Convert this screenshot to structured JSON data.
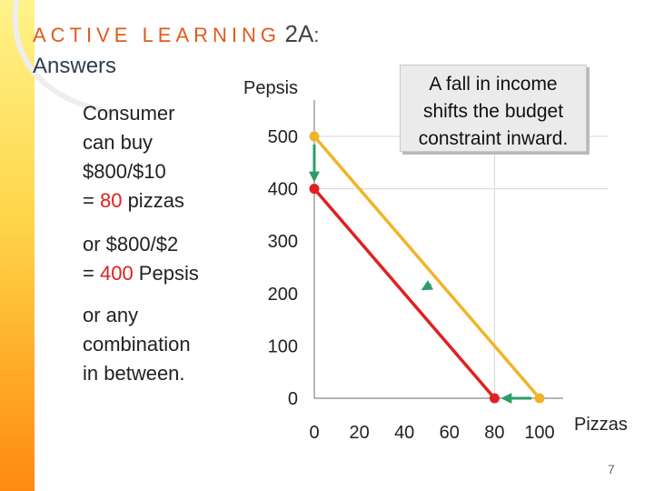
{
  "header": {
    "title_spaced": "ACTIVE LEARNING",
    "title_number": "2A",
    "title_colon": ":",
    "subtitle": "Answers"
  },
  "text": {
    "block1_line1": "Consumer",
    "block1_line2": "can buy",
    "block1_line3": "$800/$10",
    "block1_line4_prefix": "= ",
    "block1_line4_value": "80",
    "block1_line4_suffix": " pizzas",
    "block2_line1": "or $800/$2",
    "block2_line2_prefix": "= ",
    "block2_line2_value": "400",
    "block2_line2_suffix": " Pepsis",
    "block3_line1": "or any",
    "block3_line2": "combination",
    "block3_line3": "in between."
  },
  "callout": {
    "line1": "A fall in income",
    "line2": "shifts the budget",
    "line3": "constraint inward."
  },
  "page_number": "7",
  "colors": {
    "original_line": "#f0b429",
    "new_line": "#e02020",
    "arrow": "#2e9c6a",
    "header_accent": "#e05a1a"
  },
  "chart_data": {
    "type": "line",
    "xlabel": "Pizzas",
    "ylabel": "Pepsis",
    "xlim": [
      0,
      100
    ],
    "ylim": [
      0,
      500
    ],
    "x_ticks": [
      "0",
      "20",
      "40",
      "60",
      "80",
      "100"
    ],
    "y_ticks": [
      "0",
      "100",
      "200",
      "300",
      "400",
      "500"
    ],
    "grid": "major lines at 400 and 500 (y) and 80 (x)",
    "series": [
      {
        "points": [
          [
            0,
            500
          ],
          [
            100,
            0
          ]
        ],
        "color": "#f0b429"
      },
      {
        "points": [
          [
            0,
            400
          ],
          [
            80,
            0
          ]
        ],
        "color": "#e02020"
      }
    ],
    "arrows": [
      {
        "from": [
          0,
          500
        ],
        "to": [
          0,
          400
        ]
      },
      {
        "from": [
          100,
          0
        ],
        "to": [
          80,
          0
        ]
      },
      {
        "from": [
          55,
          225
        ],
        "to": [
          45,
          200
        ]
      }
    ]
  }
}
